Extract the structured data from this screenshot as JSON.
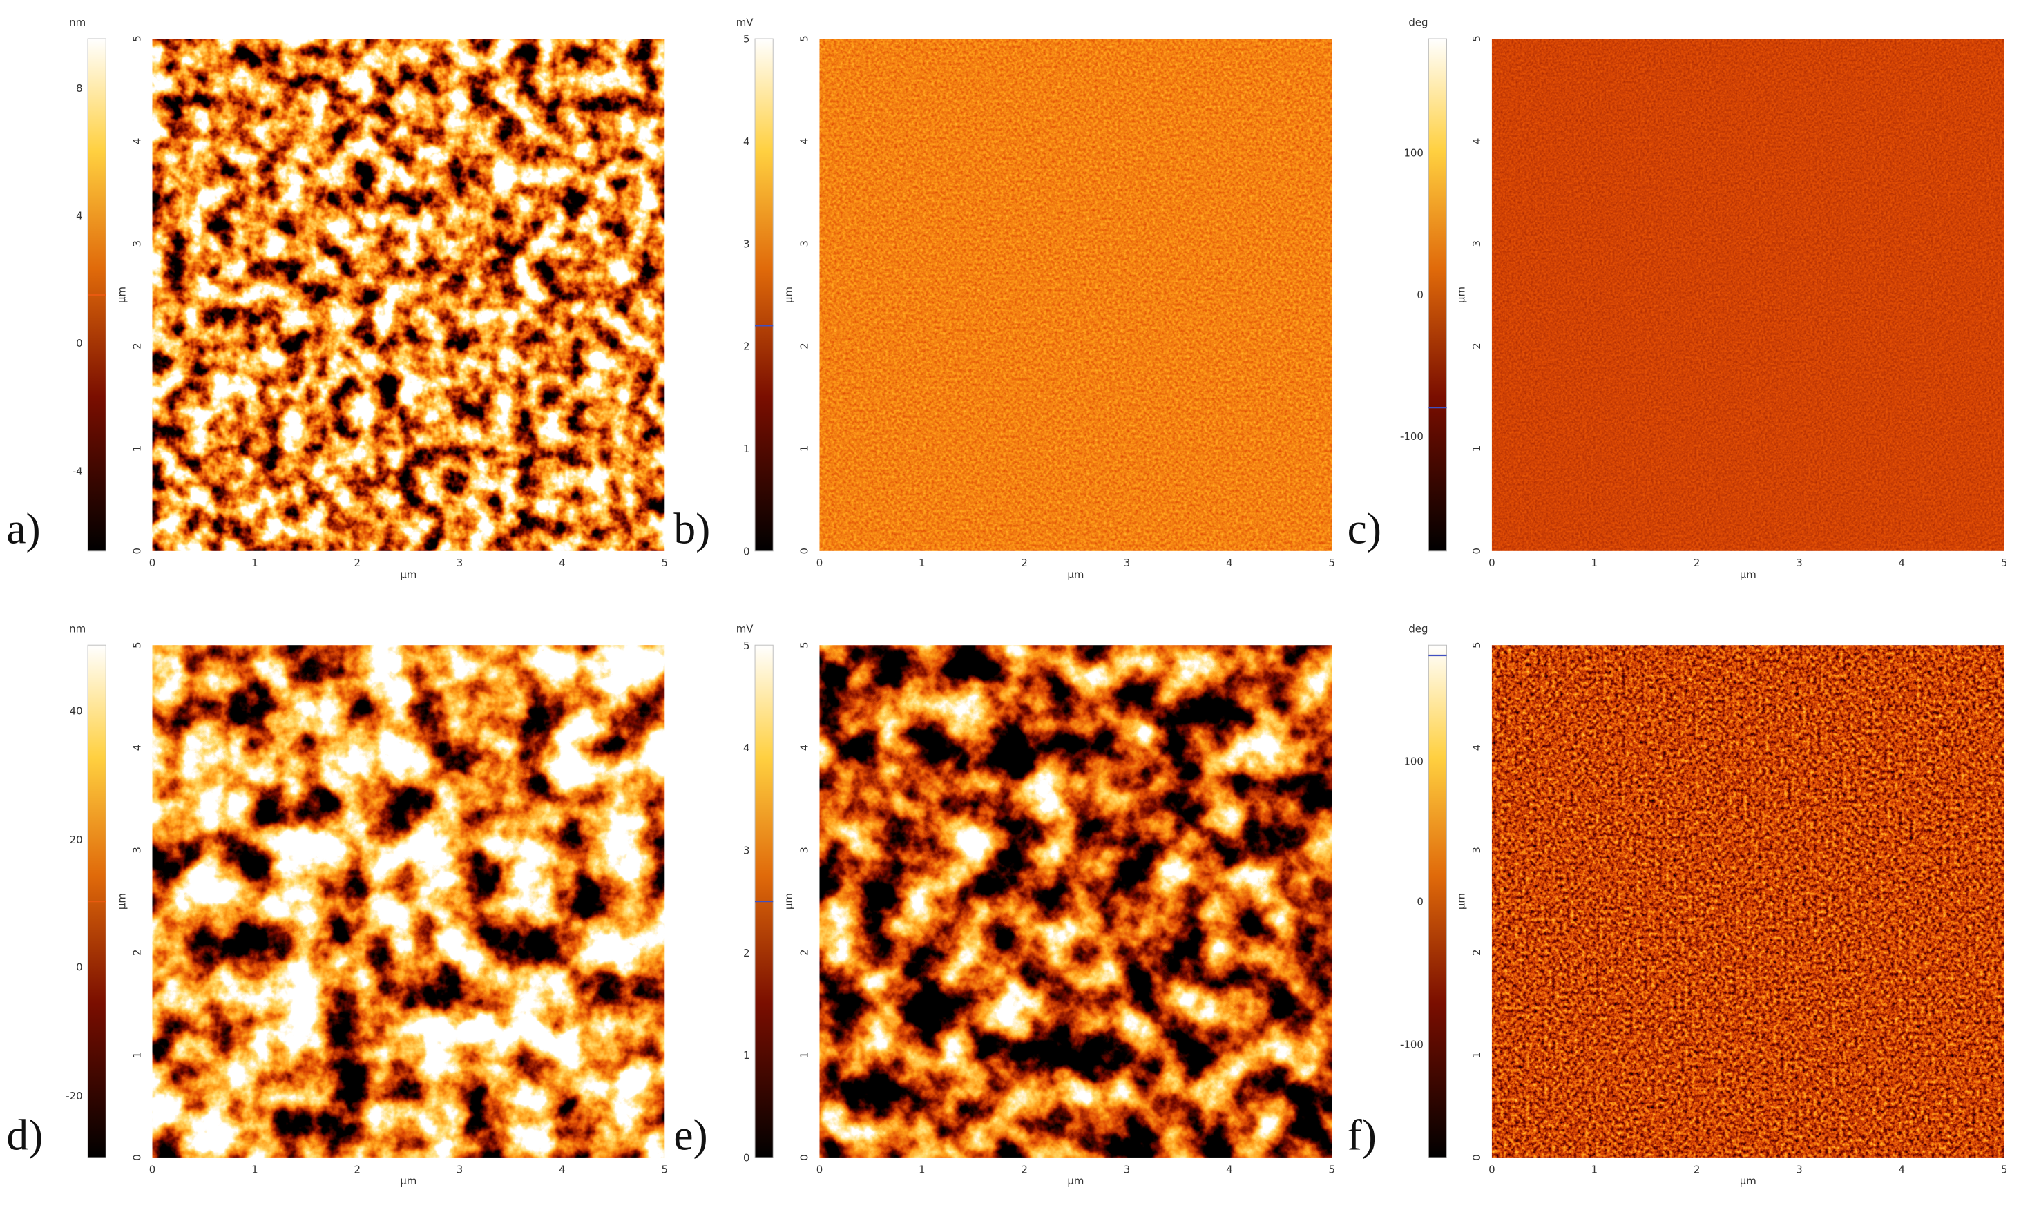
{
  "panels": [
    {
      "letter": "a)",
      "unit": "nm",
      "colorbar_ticks": [
        "8",
        "4",
        "0",
        "-4"
      ]
    },
    {
      "letter": "b)",
      "unit": "mV",
      "colorbar_ticks": [
        "5",
        "4",
        "3",
        "2",
        "1",
        "0"
      ]
    },
    {
      "letter": "c)",
      "unit": "deg",
      "colorbar_ticks": [
        "100",
        "0",
        "-100"
      ]
    },
    {
      "letter": "d)",
      "unit": "nm",
      "colorbar_ticks": [
        "40",
        "20",
        "0",
        "-20"
      ]
    },
    {
      "letter": "e)",
      "unit": "mV",
      "colorbar_ticks": [
        "5",
        "4",
        "3",
        "2",
        "1",
        "0"
      ]
    },
    {
      "letter": "f)",
      "unit": "deg",
      "colorbar_ticks": [
        "100",
        "0",
        "-100"
      ]
    }
  ],
  "axis_ticks": [
    "0",
    "1",
    "2",
    "3",
    "4",
    "5"
  ],
  "axis_label": "µm"
}
